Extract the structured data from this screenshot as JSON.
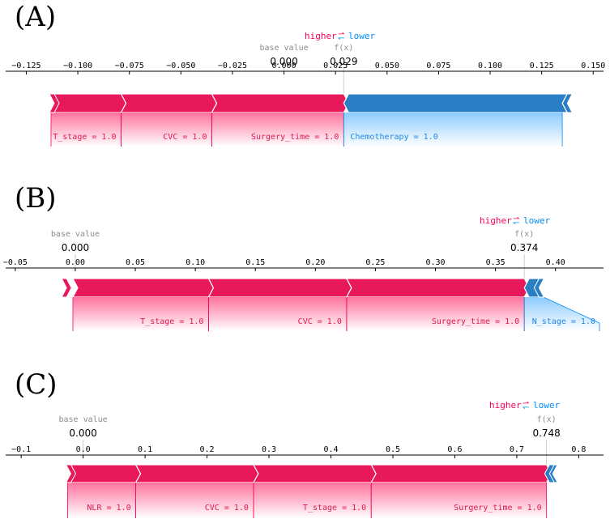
{
  "colors": {
    "positive": "#ff0051",
    "negative": "#008bfb",
    "pos_fill": "#e8195a",
    "neg_fill": "#2a7ec4"
  },
  "chart_data": [
    {
      "type": "force",
      "panel": "(A)",
      "highlight": {
        "higher": "higher",
        "arrows": "⇄",
        "lower": "lower"
      },
      "base_value_label": "base value",
      "base_value": 0.0,
      "base_value_text": "0.000",
      "fx_label": "f(x)",
      "fx": 0.029,
      "fx_text": "0.029",
      "xlim": [
        -0.135,
        0.155
      ],
      "ticks": [
        -0.125,
        -0.1,
        -0.075,
        -0.05,
        -0.025,
        0.0,
        0.025,
        0.05,
        0.075,
        0.1,
        0.125,
        0.15
      ],
      "tick_labels": [
        "−0.125",
        "−0.100",
        "−0.075",
        "−0.050",
        "−0.025",
        "0.000",
        "0.025",
        "0.050",
        "0.075",
        "0.100",
        "0.125",
        "0.150"
      ],
      "features": [
        {
          "label": "T_stage = 1.0",
          "direction": "positive",
          "start": -0.113,
          "end": -0.079
        },
        {
          "label": "CVC = 1.0",
          "direction": "positive",
          "start": -0.079,
          "end": -0.035
        },
        {
          "label": "Surgery_time = 1.0",
          "direction": "positive",
          "start": -0.035,
          "end": 0.029
        },
        {
          "label": "Chemotherapy = 1.0",
          "direction": "negative",
          "start": 0.029,
          "end": 0.135
        }
      ],
      "bar_extent": [
        -0.113,
        0.139
      ]
    },
    {
      "type": "force",
      "panel": "(B)",
      "highlight": {
        "higher": "higher",
        "arrows": "⇄",
        "lower": "lower"
      },
      "base_value_label": "base value",
      "base_value": 0.0,
      "base_value_text": "0.000",
      "fx_label": "f(x)",
      "fx": 0.374,
      "fx_text": "0.374",
      "xlim": [
        -0.058,
        0.44
      ],
      "ticks": [
        -0.05,
        0.0,
        0.05,
        0.1,
        0.15,
        0.2,
        0.25,
        0.3,
        0.35,
        0.4
      ],
      "tick_labels": [
        "−0.05",
        "0.00",
        "0.05",
        "0.10",
        "0.15",
        "0.20",
        "0.25",
        "0.30",
        "0.35",
        "0.40"
      ],
      "features": [
        {
          "label": "T_stage = 1.0",
          "direction": "positive",
          "start": -0.002,
          "end": 0.111
        },
        {
          "label": "CVC = 1.0",
          "direction": "positive",
          "start": 0.111,
          "end": 0.226
        },
        {
          "label": "Surgery_time = 1.0",
          "direction": "positive",
          "start": 0.226,
          "end": 0.374
        },
        {
          "label": "N_stage = 1.0",
          "direction": "negative",
          "start": 0.374,
          "end": 0.386
        }
      ],
      "bar_extent": [
        -0.01,
        0.389
      ]
    },
    {
      "type": "force",
      "panel": "(C)",
      "highlight": {
        "higher": "higher",
        "arrows": "⇄",
        "lower": "lower"
      },
      "base_value_label": "base value",
      "base_value": 0.0,
      "base_value_text": "0.000",
      "fx_label": "f(x)",
      "fx": 0.748,
      "fx_text": "0.748",
      "xlim": [
        -0.125,
        0.84
      ],
      "ticks": [
        -0.1,
        0.0,
        0.1,
        0.2,
        0.3,
        0.4,
        0.5,
        0.6,
        0.7,
        0.8
      ],
      "tick_labels": [
        "−0.1",
        "0.0",
        "0.1",
        "0.2",
        "0.3",
        "0.4",
        "0.5",
        "0.6",
        "0.7",
        "0.8"
      ],
      "features": [
        {
          "label": "NLR = 1.0",
          "direction": "positive",
          "start": -0.025,
          "end": 0.085
        },
        {
          "label": "CVC = 1.0",
          "direction": "positive",
          "start": 0.085,
          "end": 0.275
        },
        {
          "label": "T_stage = 1.0",
          "direction": "positive",
          "start": 0.275,
          "end": 0.465
        },
        {
          "label": "Surgery_time = 1.0",
          "direction": "positive",
          "start": 0.465,
          "end": 0.748
        },
        {
          "label": "",
          "direction": "negative",
          "start": 0.748,
          "end": 0.758
        }
      ],
      "bar_extent": [
        -0.025,
        0.758
      ]
    }
  ]
}
